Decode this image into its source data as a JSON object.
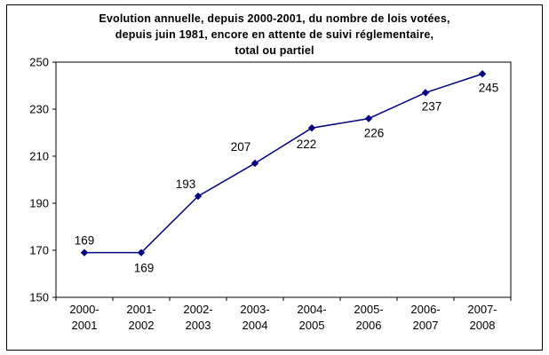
{
  "chart_data": {
    "type": "line",
    "title_lines": [
      "Evolution annuelle, depuis 2000-2001,  du nombre de lois votées,",
      "depuis juin 1981, encore en attente de  suivi réglementaire,",
      "total ou partiel"
    ],
    "categories": [
      [
        "2000-",
        "2001"
      ],
      [
        "2001-",
        "2002"
      ],
      [
        "2002-",
        "2003"
      ],
      [
        "2003-",
        "2004"
      ],
      [
        "2004-",
        "2005"
      ],
      [
        "2005-",
        "2006"
      ],
      [
        "2006-",
        "2007"
      ],
      [
        "2007-",
        "2008"
      ]
    ],
    "values": [
      169,
      169,
      193,
      207,
      222,
      226,
      237,
      245
    ],
    "data_labels": [
      "169",
      "169",
      "193",
      "207",
      "222",
      "226",
      "237",
      "245"
    ],
    "ylim": [
      150,
      250
    ],
    "yticks": [
      150,
      170,
      190,
      210,
      230,
      250
    ],
    "line_color": "#000080",
    "marker_color": "#000080",
    "text_color": "#000000",
    "plot_border_color": "#000000",
    "grid": "off",
    "legend": "none"
  }
}
